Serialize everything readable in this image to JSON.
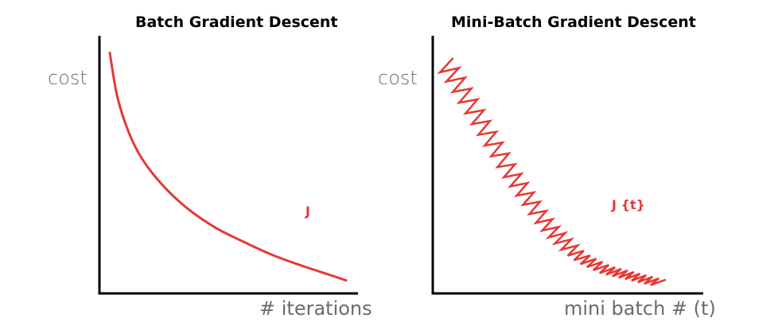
{
  "chart_data": [
    {
      "type": "line",
      "title": "Batch Gradient Descent",
      "xlabel": "# iterations",
      "ylabel": "cost",
      "series": [
        {
          "name": "J",
          "color": "#e53935",
          "x": [
            0,
            0.03,
            0.07,
            0.12,
            0.18,
            0.26,
            0.35,
            0.45,
            0.56,
            0.68,
            0.8,
            0.9,
            1
          ],
          "y": [
            0.92,
            0.76,
            0.64,
            0.54,
            0.46,
            0.38,
            0.31,
            0.25,
            0.2,
            0.15,
            0.11,
            0.08,
            0.05
          ]
        }
      ],
      "xlim": [
        0,
        1
      ],
      "ylim": [
        0,
        1
      ],
      "grid": false,
      "legend": "none"
    },
    {
      "type": "line",
      "title": "Mini-Batch Gradient Descent",
      "xlabel": "mini batch # (t)",
      "ylabel": "cost",
      "series": [
        {
          "name": "J {t}",
          "color": "#e53935",
          "x": [
            0,
            0.05,
            0.1,
            0.15,
            0.2,
            0.25,
            0.3,
            0.35,
            0.4,
            0.45,
            0.5,
            0.55,
            0.6,
            0.65,
            0.7,
            0.75,
            0.8,
            0.85,
            0.9,
            0.95,
            1
          ],
          "y": [
            0.88,
            0.82,
            0.75,
            0.68,
            0.61,
            0.54,
            0.47,
            0.41,
            0.35,
            0.29,
            0.24,
            0.2,
            0.16,
            0.13,
            0.11,
            0.09,
            0.08,
            0.07,
            0.06,
            0.05,
            0.04
          ],
          "oscillation_amplitude": 0.05,
          "oscillation_count": 34
        }
      ],
      "xlim": [
        0,
        1
      ],
      "ylim": [
        0,
        1
      ],
      "grid": false,
      "legend": "none"
    }
  ]
}
